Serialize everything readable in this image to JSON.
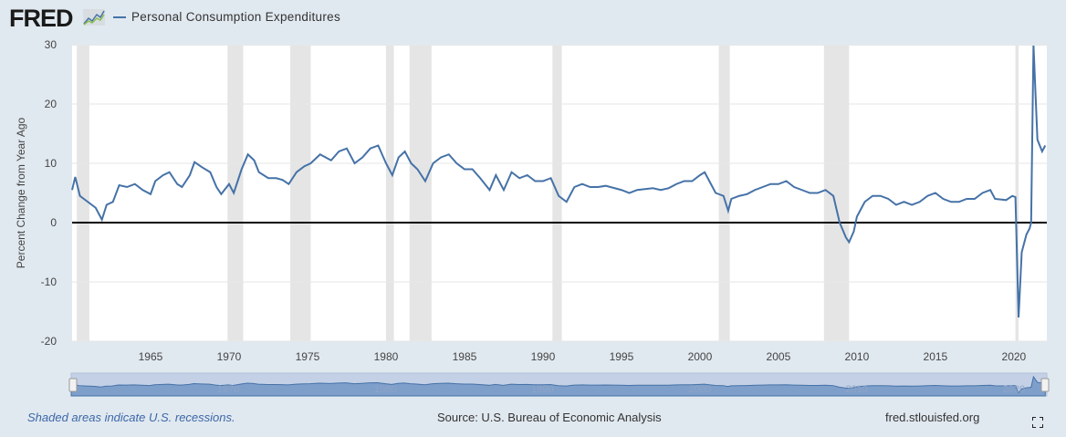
{
  "header": {
    "logo": "FRED",
    "legend_label": "Personal Consumption Expenditures"
  },
  "colors": {
    "series": "#4572a7",
    "recession": "#e5e5e5",
    "zero_line": "#000000",
    "background": "#e1e9f0"
  },
  "chart_data": {
    "type": "line",
    "title": "",
    "xlabel": "",
    "ylabel": "Percent Change from Year Ago",
    "xlim": [
      1960,
      2022.1
    ],
    "ylim": [
      -20,
      30
    ],
    "yticks": [
      30,
      20,
      10,
      0,
      -10,
      -20
    ],
    "xticks": [
      1965,
      1970,
      1975,
      1980,
      1985,
      1990,
      1995,
      2000,
      2005,
      2010,
      2015,
      2020
    ],
    "grid": "horizontal",
    "legend_placement": "top-left",
    "recessions": [
      [
        1960.3,
        1961.1
      ],
      [
        1969.9,
        1970.9
      ],
      [
        1973.9,
        1975.2
      ],
      [
        1980.0,
        1980.5
      ],
      [
        1981.5,
        1982.9
      ],
      [
        1990.6,
        1991.2
      ],
      [
        2001.2,
        2001.9
      ],
      [
        2007.9,
        2009.5
      ],
      [
        2020.1,
        2020.3
      ]
    ],
    "series": [
      {
        "name": "Personal Consumption Expenditures",
        "points": [
          [
            1960.0,
            5.5
          ],
          [
            1960.2,
            7.7
          ],
          [
            1960.5,
            4.5
          ],
          [
            1961.0,
            3.5
          ],
          [
            1961.5,
            2.5
          ],
          [
            1961.9,
            0.5
          ],
          [
            1962.2,
            3
          ],
          [
            1962.6,
            3.5
          ],
          [
            1963.0,
            6.3
          ],
          [
            1963.5,
            6
          ],
          [
            1964.0,
            6.5
          ],
          [
            1964.5,
            5.5
          ],
          [
            1965.0,
            4.8
          ],
          [
            1965.3,
            7
          ],
          [
            1965.8,
            8
          ],
          [
            1966.2,
            8.5
          ],
          [
            1966.7,
            6.5
          ],
          [
            1967.0,
            6
          ],
          [
            1967.5,
            8
          ],
          [
            1967.8,
            10.2
          ],
          [
            1968.3,
            9.3
          ],
          [
            1968.8,
            8.5
          ],
          [
            1969.2,
            6
          ],
          [
            1969.5,
            4.8
          ],
          [
            1970.0,
            6.5
          ],
          [
            1970.3,
            5
          ],
          [
            1970.8,
            9
          ],
          [
            1971.2,
            11.5
          ],
          [
            1971.6,
            10.5
          ],
          [
            1971.9,
            8.5
          ],
          [
            1972.5,
            7.5
          ],
          [
            1973.0,
            7.5
          ],
          [
            1973.4,
            7.2
          ],
          [
            1973.8,
            6.5
          ],
          [
            1974.3,
            8.5
          ],
          [
            1974.8,
            9.5
          ],
          [
            1975.2,
            10
          ],
          [
            1975.8,
            11.5
          ],
          [
            1976.5,
            10.5
          ],
          [
            1977.0,
            12
          ],
          [
            1977.5,
            12.5
          ],
          [
            1978.0,
            10
          ],
          [
            1978.5,
            11
          ],
          [
            1979.0,
            12.5
          ],
          [
            1979.5,
            13
          ],
          [
            1980.0,
            10
          ],
          [
            1980.4,
            8
          ],
          [
            1980.8,
            11
          ],
          [
            1981.2,
            12
          ],
          [
            1981.6,
            10
          ],
          [
            1982.0,
            9
          ],
          [
            1982.5,
            7
          ],
          [
            1983.0,
            10
          ],
          [
            1983.5,
            11
          ],
          [
            1984.0,
            11.5
          ],
          [
            1984.5,
            10
          ],
          [
            1985.0,
            9
          ],
          [
            1985.5,
            9
          ],
          [
            1986.0,
            7.5
          ],
          [
            1986.6,
            5.5
          ],
          [
            1987.0,
            8
          ],
          [
            1987.5,
            5.5
          ],
          [
            1988.0,
            8.5
          ],
          [
            1988.5,
            7.5
          ],
          [
            1989.0,
            8
          ],
          [
            1989.5,
            7
          ],
          [
            1990.0,
            7
          ],
          [
            1990.5,
            7.5
          ],
          [
            1991.0,
            4.5
          ],
          [
            1991.5,
            3.5
          ],
          [
            1992.0,
            6
          ],
          [
            1992.5,
            6.5
          ],
          [
            1993.0,
            6
          ],
          [
            1993.5,
            6
          ],
          [
            1994.0,
            6.2
          ],
          [
            1995.0,
            5.5
          ],
          [
            1995.5,
            5
          ],
          [
            1996.0,
            5.5
          ],
          [
            1997.0,
            5.8
          ],
          [
            1997.5,
            5.5
          ],
          [
            1998.0,
            5.8
          ],
          [
            1998.5,
            6.5
          ],
          [
            1999.0,
            7
          ],
          [
            1999.5,
            7
          ],
          [
            2000.0,
            8
          ],
          [
            2000.3,
            8.5
          ],
          [
            2000.6,
            7
          ],
          [
            2001.0,
            5
          ],
          [
            2001.5,
            4.5
          ],
          [
            2001.8,
            2
          ],
          [
            2002.0,
            4
          ],
          [
            2002.5,
            4.5
          ],
          [
            2003.0,
            4.8
          ],
          [
            2003.5,
            5.5
          ],
          [
            2004.0,
            6
          ],
          [
            2004.5,
            6.5
          ],
          [
            2005.0,
            6.5
          ],
          [
            2005.5,
            7
          ],
          [
            2006.0,
            6
          ],
          [
            2006.5,
            5.5
          ],
          [
            2007.0,
            5
          ],
          [
            2007.5,
            5
          ],
          [
            2008.0,
            5.5
          ],
          [
            2008.5,
            4.5
          ],
          [
            2008.9,
            0
          ],
          [
            2009.3,
            -2.5
          ],
          [
            2009.5,
            -3.3
          ],
          [
            2009.8,
            -1.5
          ],
          [
            2010.0,
            1
          ],
          [
            2010.5,
            3.5
          ],
          [
            2011.0,
            4.5
          ],
          [
            2011.5,
            4.5
          ],
          [
            2012.0,
            4
          ],
          [
            2012.5,
            3
          ],
          [
            2013.0,
            3.5
          ],
          [
            2013.5,
            3
          ],
          [
            2014.0,
            3.5
          ],
          [
            2014.5,
            4.5
          ],
          [
            2015.0,
            5
          ],
          [
            2015.5,
            4
          ],
          [
            2016.0,
            3.5
          ],
          [
            2016.5,
            3.5
          ],
          [
            2017.0,
            4
          ],
          [
            2017.5,
            4
          ],
          [
            2018.0,
            5
          ],
          [
            2018.5,
            5.5
          ],
          [
            2018.8,
            4
          ],
          [
            2019.5,
            3.8
          ],
          [
            2019.9,
            4.5
          ],
          [
            2020.1,
            4.3
          ],
          [
            2020.3,
            -16
          ],
          [
            2020.5,
            -5
          ],
          [
            2020.8,
            -2
          ],
          [
            2021.0,
            -1
          ],
          [
            2021.1,
            0
          ],
          [
            2021.25,
            30
          ],
          [
            2021.5,
            14
          ],
          [
            2021.8,
            12
          ],
          [
            2022.0,
            13
          ]
        ]
      }
    ],
    "navigator_ticks": [
      1970,
      1980,
      1990,
      2000,
      2010,
      2020
    ]
  },
  "footer": {
    "recession_note": "Shaded areas indicate U.S. recessions.",
    "source": "Source: U.S. Bureau of Economic Analysis",
    "site": "fred.stlouisfed.org",
    "fullscreen_icon": "expand-icon"
  }
}
